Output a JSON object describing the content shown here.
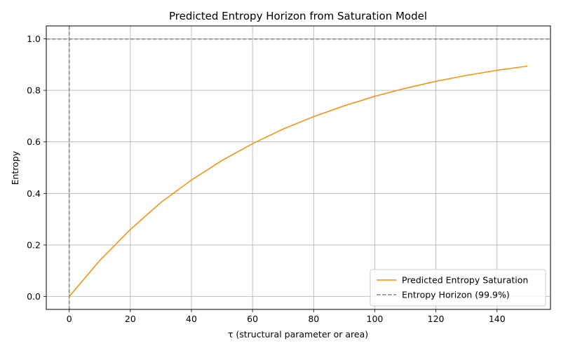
{
  "chart_data": {
    "type": "line",
    "title": "Predicted Entropy Horizon from Saturation Model",
    "xlabel": "τ (structural parameter or area)",
    "ylabel": "Entropy",
    "xlim": [
      -7.5,
      157.5
    ],
    "ylim": [
      -0.05,
      1.05
    ],
    "xticks": [
      0,
      20,
      40,
      60,
      80,
      100,
      120,
      140
    ],
    "yticks": [
      0.0,
      0.2,
      0.4,
      0.6,
      0.8,
      1.0
    ],
    "xtick_labels": [
      "0",
      "20",
      "40",
      "60",
      "80",
      "100",
      "120",
      "140"
    ],
    "ytick_labels": [
      "0.0",
      "0.2",
      "0.4",
      "0.6",
      "0.8",
      "1.0"
    ],
    "grid": true,
    "legend_position": "lower-right",
    "series": [
      {
        "name": "Predicted Entropy Saturation",
        "color": "#ff8c00",
        "style": "solid",
        "x": [
          0,
          10,
          20,
          30,
          40,
          50,
          60,
          70,
          80,
          90,
          100,
          110,
          120,
          130,
          140,
          150
        ],
        "y": [
          0.0,
          0.14,
          0.26,
          0.365,
          0.452,
          0.528,
          0.593,
          0.65,
          0.698,
          0.74,
          0.777,
          0.808,
          0.835,
          0.858,
          0.878,
          0.894
        ]
      }
    ],
    "reference_lines": [
      {
        "name": "Entropy Horizon (99.9%)",
        "orientation": "horizontal",
        "value": 0.999,
        "color": "#808080",
        "style": "dashed"
      },
      {
        "name": "Entropy Horizon (99.9%)",
        "orientation": "vertical",
        "value": 0,
        "color": "#808080",
        "style": "dashed"
      }
    ],
    "legend": [
      {
        "label": "Predicted Entropy Saturation",
        "color": "#ff8c00",
        "style": "solid"
      },
      {
        "label": "Entropy Horizon (99.9%)",
        "color": "#808080",
        "style": "dashed"
      }
    ]
  }
}
